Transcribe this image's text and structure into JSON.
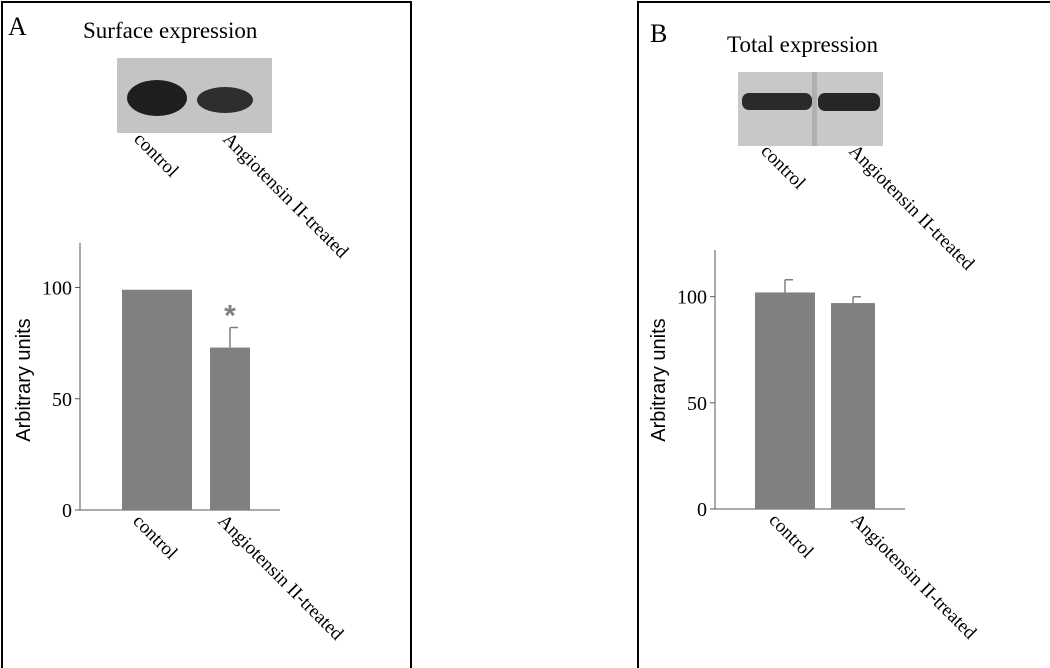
{
  "chart_data": [
    {
      "type": "bar",
      "panel": "A",
      "title": "Surface expression",
      "blot_labels": [
        "control",
        "Angiotensin II-treated"
      ],
      "categories": [
        "control",
        "Angiotensin II-treated"
      ],
      "values": [
        99,
        73
      ],
      "errors": [
        null,
        9
      ],
      "color": "#808080",
      "annotation": "*",
      "ylabel": "Arbitrary units",
      "ylim": [
        0,
        120
      ],
      "yticks": [
        0,
        50,
        100
      ]
    },
    {
      "type": "bar",
      "panel": "B",
      "title": "Total expression",
      "blot_labels": [
        "control",
        "Angiotensin II-treated"
      ],
      "categories": [
        "control",
        "Angiotensin II-treated"
      ],
      "values": [
        102,
        97
      ],
      "errors": [
        6,
        3
      ],
      "color": "#808080",
      "ylabel": "Arbitrary units",
      "ylim": [
        0,
        122
      ],
      "yticks": [
        0,
        50,
        100
      ]
    }
  ]
}
